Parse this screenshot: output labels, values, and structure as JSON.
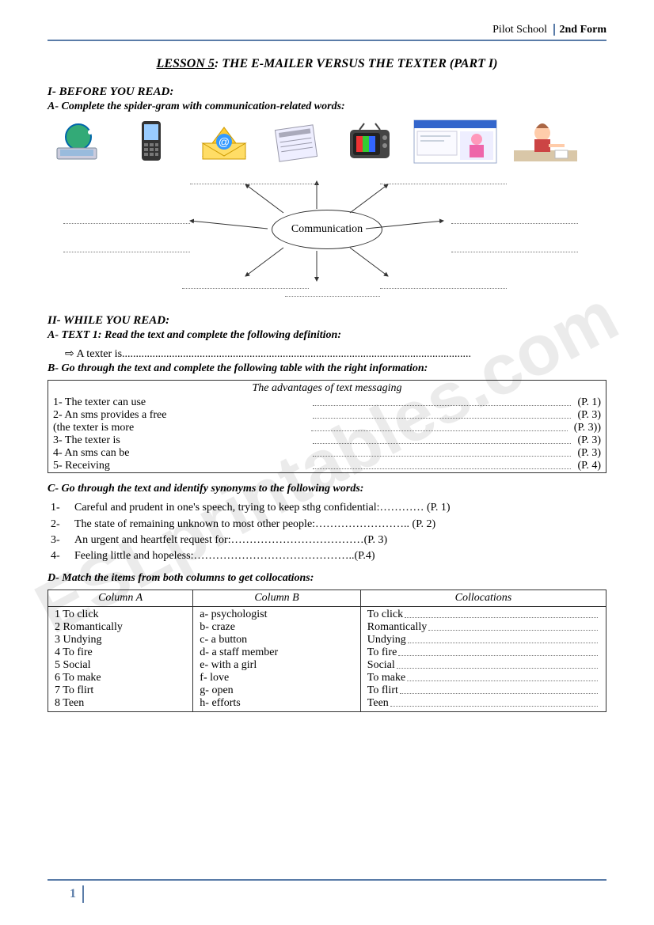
{
  "header": {
    "school": "Pilot School",
    "form": "2nd Form"
  },
  "title": {
    "prefix": "LESSON 5",
    "rest": ": THE E-MAILER VERSUS THE TEXTER (PART I)"
  },
  "sec1": {
    "heading": "I-  BEFORE YOU READ:",
    "a_head": "A- Complete the spider-gram with communication-related words:",
    "bubble": "Communication"
  },
  "sec2": {
    "heading": "II- WHILE YOU READ:",
    "a_head": "A- TEXT 1: Read the text and complete the following definition:",
    "a_line": "A texter is",
    "b_head": "B- Go through the text and complete the following table with the right information:",
    "b_table_title": "The advantages of text messaging",
    "b_rows": [
      {
        "l": "   1-  The texter can use",
        "r": "(P. 1)"
      },
      {
        "l": "2- An sms provides a free",
        "r": "(P. 3)"
      },
      {
        "l": "(the texter is more",
        "r": "(P. 3))"
      },
      {
        "l": "3- The texter is",
        "r": "(P. 3)"
      },
      {
        "l": "4- An sms can be",
        "r": "(P. 3)"
      },
      {
        "l": "5- Receiving",
        "r": "(P. 4)"
      }
    ],
    "c_head": "C- Go through the text and identify synonyms to the following words:",
    "c_rows": [
      {
        "n": "1-",
        "t": "Careful and prudent in one's speech, trying to keep sthg confidential:………… (P. 1)"
      },
      {
        "n": "2-",
        "t": "The state of remaining unknown to most other people:…………………….. (P. 2)"
      },
      {
        "n": "3-",
        "t": "An urgent and heartfelt request for:………………………………(P. 3)"
      },
      {
        "n": "4-",
        "t": "Feeling little and hopeless:……………………………………..(P.4)"
      }
    ],
    "d_head": "D- Match the items from both columns to get collocations:",
    "d_cols": {
      "a": "Column A",
      "b": "Column B",
      "c": "Collocations"
    },
    "d_rows": [
      {
        "a": "1   To click",
        "b": "a-  psychologist",
        "c": "To click"
      },
      {
        "a": "2   Romantically",
        "b": "b-  craze",
        "c": "Romantically"
      },
      {
        "a": "3   Undying",
        "b": "c-  a button",
        "c": "Undying"
      },
      {
        "a": "4   To fire",
        "b": "d-  a staff member",
        "c": "To fire"
      },
      {
        "a": "5   Social",
        "b": "e-  with a girl",
        "c": "Social"
      },
      {
        "a": "6   To make",
        "b": "f-  love",
        "c": "To make"
      },
      {
        "a": "7   To flirt",
        "b": "g-  open",
        "c": "To flirt"
      },
      {
        "a": "8   Teen",
        "b": "h-  efforts",
        "c": "Teen"
      }
    ]
  },
  "footer": {
    "page": "1"
  },
  "watermark": "ESLprintables.com",
  "colors": {
    "accent": "#5a7ca8",
    "text": "#222222",
    "dot": "#777777"
  }
}
